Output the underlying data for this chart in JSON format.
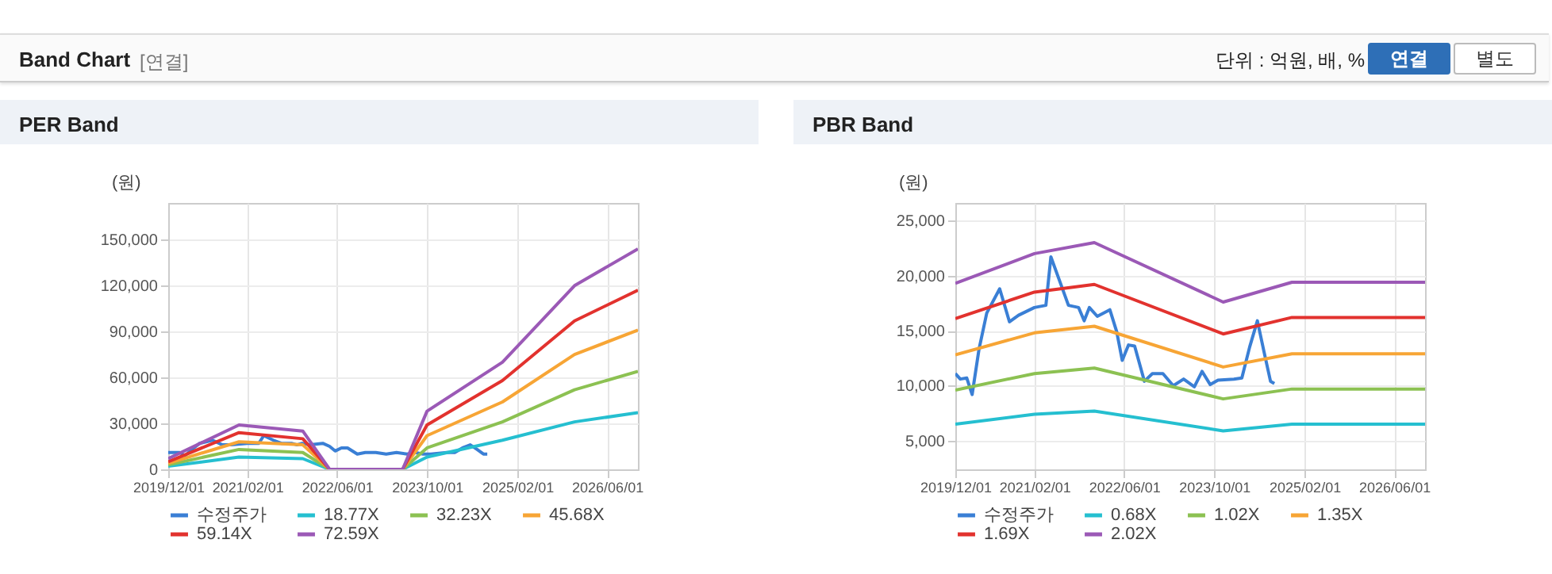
{
  "chart_data": [
    {
      "type": "line",
      "title": "PER Band",
      "ylabel": "(원)",
      "annotations": [
        "Band Chart",
        "[연결]",
        "단위 : 억원, 배, %",
        "연결",
        "별도"
      ],
      "x": [
        "2019-12-01",
        "2020-12-18",
        "2021-11-28",
        "2022-04-22",
        "2023-05-22",
        "2023-10-01",
        "2024-11-12",
        "2025-12-07",
        "2026-11-15"
      ],
      "xlim": [
        "2019-12-01",
        "2026-11-15"
      ],
      "xticks": [
        {
          "value": "2019-12-01",
          "label": "2019/12/01"
        },
        {
          "value": "2021-02-01",
          "label": "2021/02/01"
        },
        {
          "value": "2022-06-01",
          "label": "2022/06/01"
        },
        {
          "value": "2023-10-01",
          "label": "2023/10/01"
        },
        {
          "value": "2025-02-01",
          "label": "2025/02/01"
        },
        {
          "value": "2026-06-01",
          "label": "2026/06/01"
        }
      ],
      "ylim": [
        0,
        174000
      ],
      "yticks": [
        0,
        {
          "value": 30000,
          "label": "30,000"
        },
        {
          "value": 60000,
          "label": "60,000"
        },
        {
          "value": 90000,
          "label": "90,000"
        },
        {
          "value": 120000,
          "label": "120,000"
        },
        {
          "value": 150000,
          "label": "150,000"
        }
      ],
      "grid": true,
      "legend": "bottom",
      "marker": "none",
      "line_style": "solid",
      "series": [
        {
          "name": "수정주가",
          "color": "#3a7fd5",
          "x": [
            "2019-12-01",
            "2019-12-28",
            "2020-02-01",
            "2020-03-01",
            "2020-04-07",
            "2020-05-19",
            "2020-07-28",
            "2020-09-19",
            "2020-11-07",
            "2021-02-01",
            "2021-04-04",
            "2021-05-01",
            "2021-06-22",
            "2021-08-04",
            "2021-09-28",
            "2021-10-28",
            "2021-11-25",
            "2022-01-07",
            "2022-03-16",
            "2022-04-22",
            "2022-05-22",
            "2022-06-25",
            "2022-07-28",
            "2022-09-19",
            "2022-11-01",
            "2022-12-28",
            "2023-02-22",
            "2023-04-19",
            "2023-06-16",
            "2023-07-28",
            "2023-09-10",
            "2023-10-22",
            "2024-01-16",
            "2024-02-28",
            "2024-04-10",
            "2024-05-22",
            "2024-06-28",
            "2024-08-01",
            "2024-08-22"
          ],
          "values": [
            11000,
            11000,
            11000,
            9000,
            13000,
            17000,
            19000,
            16000,
            16000,
            17000,
            17000,
            22000,
            19000,
            17000,
            17000,
            16000,
            17000,
            16000,
            17000,
            15000,
            12000,
            14000,
            14000,
            10000,
            11000,
            11000,
            10000,
            11000,
            10000,
            11000,
            10000,
            10000,
            11000,
            11000,
            14000,
            16000,
            13000,
            10000,
            10000
          ]
        },
        {
          "name": "18.77X",
          "color": "#25bfd0",
          "values": [
            2000,
            8000,
            7000,
            0,
            0,
            8000,
            19000,
            31000,
            37000
          ]
        },
        {
          "name": "32.23X",
          "color": "#8cc152",
          "values": [
            3000,
            13000,
            11000,
            0,
            0,
            14000,
            31000,
            52000,
            64000
          ]
        },
        {
          "name": "45.68X",
          "color": "#f7a535",
          "values": [
            4000,
            18000,
            16000,
            0,
            0,
            22000,
            44000,
            75000,
            91000
          ]
        },
        {
          "name": "59.14X",
          "color": "#e2322e",
          "values": [
            5000,
            24000,
            20000,
            0,
            0,
            29000,
            58000,
            97000,
            117000
          ]
        },
        {
          "name": "72.59X",
          "color": "#9b59b6",
          "values": [
            7000,
            29000,
            25000,
            0,
            0,
            38000,
            70000,
            120000,
            144000
          ]
        }
      ]
    },
    {
      "type": "line",
      "title": "PBR Band",
      "ylabel": "(원)",
      "x": [
        "2019-12-01",
        "2021-02-01",
        "2021-12-22",
        "2023-11-19",
        "2024-11-25",
        "2026-11-15"
      ],
      "xlim": [
        "2019-12-01",
        "2026-11-15"
      ],
      "xticks": [
        {
          "value": "2019-12-01",
          "label": "2019/12/01"
        },
        {
          "value": "2021-02-01",
          "label": "2021/02/01"
        },
        {
          "value": "2022-06-01",
          "label": "2022/06/01"
        },
        {
          "value": "2023-10-01",
          "label": "2023/10/01"
        },
        {
          "value": "2025-02-01",
          "label": "2025/02/01"
        },
        {
          "value": "2026-06-01",
          "label": "2026/06/01"
        }
      ],
      "ylim": [
        2400,
        26600
      ],
      "yticks": [
        {
          "value": 5000,
          "label": "5,000"
        },
        {
          "value": 10000,
          "label": "10,000"
        },
        {
          "value": 15000,
          "label": "15,000"
        },
        {
          "value": 20000,
          "label": "20,000"
        },
        {
          "value": 25000,
          "label": "25,000"
        }
      ],
      "grid": true,
      "legend": "bottom",
      "marker": "none",
      "line_style": "solid",
      "series": [
        {
          "name": "수정주가",
          "color": "#3a7fd5",
          "x": [
            "2019-12-01",
            "2019-12-28",
            "2020-02-01",
            "2020-03-01",
            "2020-04-07",
            "2020-05-19",
            "2020-07-28",
            "2020-09-19",
            "2020-11-07",
            "2021-02-01",
            "2021-04-04",
            "2021-05-01",
            "2021-06-22",
            "2021-08-04",
            "2021-09-28",
            "2021-10-28",
            "2021-11-25",
            "2022-01-07",
            "2022-03-16",
            "2022-04-22",
            "2022-05-22",
            "2022-06-25",
            "2022-07-28",
            "2022-09-19",
            "2022-11-01",
            "2022-12-28",
            "2023-02-22",
            "2023-04-19",
            "2023-06-16",
            "2023-07-28",
            "2023-09-10",
            "2023-10-22",
            "2024-01-16",
            "2024-02-28",
            "2024-04-10",
            "2024-05-22",
            "2024-06-28",
            "2024-08-01",
            "2024-08-22"
          ],
          "values": [
            11100,
            10600,
            10700,
            9200,
            13300,
            16600,
            18800,
            15800,
            16400,
            17100,
            17300,
            21700,
            19300,
            17300,
            17100,
            15900,
            17100,
            16300,
            16900,
            14900,
            12300,
            13700,
            13600,
            10400,
            11100,
            11100,
            10000,
            10600,
            9900,
            11300,
            10100,
            10500,
            10600,
            10700,
            13500,
            15900,
            13000,
            10400,
            10200
          ]
        },
        {
          "name": "0.68X",
          "color": "#25bfd0",
          "values": [
            6500,
            7400,
            7700,
            5900,
            6500,
            6500
          ]
        },
        {
          "name": "1.02X",
          "color": "#8cc152",
          "values": [
            9600,
            11100,
            11600,
            8800,
            9700,
            9700
          ]
        },
        {
          "name": "1.35X",
          "color": "#f7a535",
          "values": [
            12800,
            14800,
            15400,
            11700,
            12900,
            12900
          ]
        },
        {
          "name": "1.69X",
          "color": "#e2322e",
          "values": [
            16100,
            18500,
            19200,
            14700,
            16200,
            16200
          ]
        },
        {
          "name": "2.02X",
          "color": "#9b59b6",
          "values": [
            19300,
            22000,
            23000,
            17600,
            19400,
            19400
          ]
        }
      ]
    }
  ]
}
